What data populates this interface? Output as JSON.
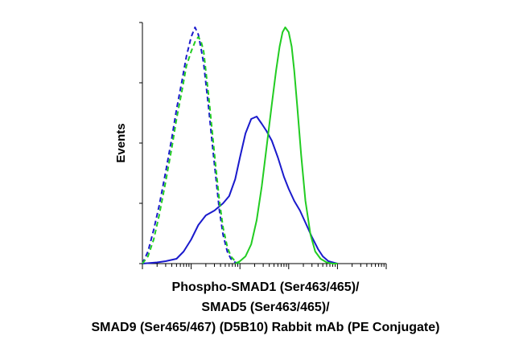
{
  "chart_data": {
    "type": "line",
    "title": "",
    "ylabel": "Events",
    "xlabel_lines": [
      "Phospho-SMAD1 (Ser463/465)/",
      "SMAD5 (Ser463/465)/",
      "SMAD9 (Ser465/467) (D5B10) Rabbit mAb (PE Conjugate)"
    ],
    "x_scale": "log",
    "xlim": [
      1,
      100000
    ],
    "ylim": [
      0,
      100
    ],
    "grid": false,
    "series": [
      {
        "name": "blue-solid",
        "color": "#1a1acc",
        "style": "solid",
        "x": [
          1,
          2,
          3,
          5,
          7,
          10,
          14,
          20,
          30,
          45,
          60,
          80,
          100,
          130,
          170,
          220,
          280,
          350,
          450,
          600,
          800,
          1000,
          1300,
          1700,
          2200,
          3000,
          4000,
          5000,
          6500,
          8000,
          10000
        ],
        "y": [
          0,
          0.5,
          1,
          2,
          5,
          10,
          16,
          20,
          22,
          25,
          28,
          35,
          44,
          54,
          60,
          61,
          58,
          55,
          51,
          44,
          36,
          31,
          26,
          22,
          17,
          11,
          6,
          3,
          1,
          0.5,
          0
        ]
      },
      {
        "name": "blue-dashed",
        "color": "#1a1acc",
        "style": "dashed",
        "x": [
          1,
          1.3,
          1.7,
          2.2,
          3,
          4,
          5,
          6.5,
          8,
          10,
          12,
          14,
          16,
          18,
          20,
          23,
          27,
          32,
          38,
          45,
          55,
          65,
          80,
          100
        ],
        "y": [
          0,
          5,
          14,
          24,
          38,
          52,
          64,
          76,
          86,
          94,
          98,
          95,
          89,
          83,
          75,
          64,
          50,
          36,
          22,
          12,
          5,
          2,
          0.5,
          0
        ]
      },
      {
        "name": "green-dashed",
        "color": "#22cc22",
        "style": "dashed",
        "x": [
          1,
          1.3,
          1.7,
          2.2,
          3,
          4,
          5,
          6.5,
          8,
          10,
          12,
          14,
          16,
          18,
          20,
          23,
          27,
          32,
          38,
          45,
          55,
          65,
          80,
          100
        ],
        "y": [
          0,
          3,
          10,
          20,
          34,
          48,
          60,
          72,
          82,
          88,
          92,
          94,
          92,
          88,
          80,
          69,
          55,
          40,
          26,
          15,
          7,
          3,
          1,
          0
        ]
      },
      {
        "name": "green-solid",
        "color": "#22cc22",
        "style": "solid",
        "x": [
          80,
          100,
          130,
          170,
          220,
          280,
          350,
          450,
          550,
          650,
          750,
          850,
          1000,
          1150,
          1300,
          1500,
          1800,
          2200,
          2800,
          3500,
          4500,
          6000,
          8000,
          10000
        ],
        "y": [
          0,
          1,
          3,
          8,
          18,
          32,
          48,
          66,
          80,
          90,
          96,
          98,
          96,
          90,
          80,
          65,
          45,
          26,
          12,
          5,
          2,
          0.5,
          0,
          0
        ]
      }
    ]
  }
}
